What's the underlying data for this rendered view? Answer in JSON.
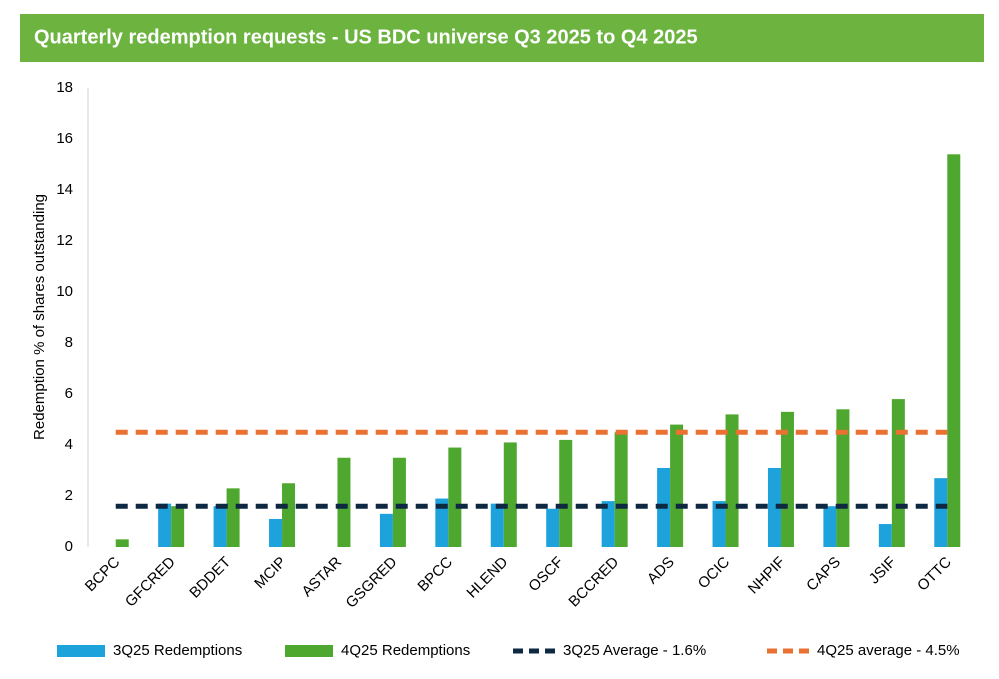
{
  "chart_data": {
    "type": "bar",
    "title": "Quarterly redemption requests - US BDC universe Q3 2025 to Q4 2025",
    "y_label": "Redemption % of shares outstanding",
    "categories": [
      "BCPC",
      "GFCRED",
      "BDDET",
      "MCIP",
      "ASTAR",
      "GSGRED",
      "BPCC",
      "HLEND",
      "OSCF",
      "BCCRED",
      "ADS",
      "OCIC",
      "NHPIF",
      "CAPS",
      "JSIF",
      "OTTC"
    ],
    "series": [
      {
        "name": "3Q25 Redemptions",
        "color": "#1ea2dc",
        "values": [
          0,
          1.7,
          1.6,
          1.1,
          0,
          1.3,
          1.9,
          1.7,
          1.5,
          1.8,
          3.1,
          1.8,
          3.1,
          1.6,
          0.9,
          2.7
        ]
      },
      {
        "name": "4Q25 Redemptions",
        "color": "#4ea72e",
        "values": [
          0.3,
          1.6,
          2.3,
          2.5,
          3.5,
          3.5,
          3.9,
          4.1,
          4.2,
          4.5,
          4.8,
          5.2,
          5.3,
          5.4,
          5.8,
          15.4
        ]
      }
    ],
    "averages": [
      {
        "name": "3Q25 Average - 1.6%",
        "color": "#0e2841",
        "value": 1.6
      },
      {
        "name": "4Q25 average - 4.5%",
        "color": "#e97132",
        "value": 4.5
      }
    ],
    "ylim": [
      0,
      18
    ],
    "yticks": [
      0,
      2,
      4,
      6,
      8,
      10,
      12,
      14,
      16,
      18
    ],
    "grid": false
  }
}
